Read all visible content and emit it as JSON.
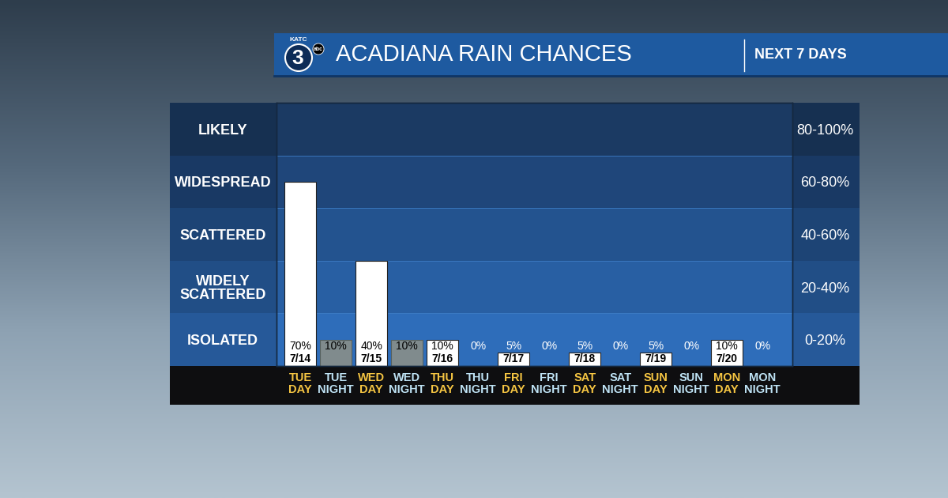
{
  "chart_data": {
    "type": "bar",
    "title": "ACADIANA RAIN CHANCES",
    "subtitle": "NEXT 7 DAYS",
    "logo": [
      "KATC",
      "3",
      "abc"
    ],
    "categories": [
      "TUE\nDAY",
      "TUE\nNIGHT",
      "WED\nDAY",
      "WED\nNIGHT",
      "THU\nDAY",
      "THU\nNIGHT",
      "FRI\nDAY",
      "FRI\nNIGHT",
      "SAT\nDAY",
      "SAT\nNIGHT",
      "SUN\nDAY",
      "SUN\nNIGHT",
      "MON\nDAY",
      "MON\nNIGHT"
    ],
    "values": [
      70,
      10,
      40,
      10,
      10,
      0,
      5,
      0,
      5,
      0,
      5,
      0,
      10,
      0
    ],
    "value_labels": [
      "70%",
      "10%",
      "40%",
      "10%",
      "10%",
      "0%",
      "5%",
      "0%",
      "5%",
      "0%",
      "5%",
      "0%",
      "10%",
      "0%"
    ],
    "dates": [
      "7/14",
      null,
      "7/15",
      null,
      "7/16",
      null,
      "7/17",
      null,
      "7/18",
      null,
      "7/19",
      null,
      "7/20",
      null
    ],
    "colors": [
      "#ffffff",
      "#808b8d",
      "#ffffff",
      "#808b8d",
      "#ffffff",
      "#808b8d",
      "#ffffff",
      "#808b8d",
      "#ffffff",
      "#808b8d",
      "#ffffff",
      "#808b8d",
      "#ffffff",
      "#808b8d"
    ],
    "data_labels": true,
    "ylim": [
      0,
      100
    ],
    "yticks": [
      {
        "value": 10,
        "label": "ISOLATED"
      },
      {
        "value": 30,
        "label": "WIDELY\nSCATTERED"
      },
      {
        "value": 50,
        "label": "SCATTERED"
      },
      {
        "value": 70,
        "label": "WIDESPREAD"
      },
      {
        "value": 90,
        "label": "LIKELY"
      }
    ],
    "y2lim": [
      0,
      100
    ],
    "y2ticks": [
      {
        "value": 10,
        "label": "0-20%"
      },
      {
        "value": 30,
        "label": "20-40%"
      },
      {
        "value": 50,
        "label": "40-60%"
      },
      {
        "value": 70,
        "label": "60-80%"
      },
      {
        "value": 90,
        "label": "80-100%"
      }
    ],
    "bands": [
      {
        "from": 0,
        "to": 20,
        "color": "#2e6dba"
      },
      {
        "from": 20,
        "to": 40,
        "color": "#285fa3"
      },
      {
        "from": 40,
        "to": 60,
        "color": "#23538f"
      },
      {
        "from": 60,
        "to": 80,
        "color": "#1f467a"
      },
      {
        "from": 80,
        "to": 100,
        "color": "#1b3a63"
      }
    ]
  }
}
